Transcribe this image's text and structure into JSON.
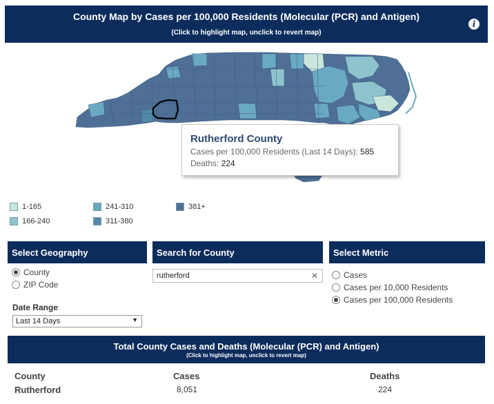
{
  "header": {
    "title": "County Map by Cases per 100,000 Residents (Molecular (PCR) and Antigen)",
    "subtitle": "(Click to highlight map, unclick to revert map)",
    "info_icon": "i"
  },
  "colors": {
    "header_bg": "#0c2c5c",
    "bin1": "#c8e6dc",
    "bin2": "#8fc3ce",
    "bin3": "#6aa9c2",
    "bin4": "#5089a8",
    "bin5": "#4f6f96"
  },
  "tooltip": {
    "county": "Rutherford County",
    "cases_label": "Cases per 100,000 Residents (Last 14 Days):",
    "cases_value": "585",
    "deaths_label": "Deaths:",
    "deaths_value": "224"
  },
  "legend": [
    {
      "label": "1-165",
      "color": "#c8e6dc"
    },
    {
      "label": "166-240",
      "color": "#8fc3ce"
    },
    {
      "label": "241-310",
      "color": "#6aa9c2"
    },
    {
      "label": "311-380",
      "color": "#5089a8"
    },
    {
      "label": "381+",
      "color": "#4f6f96"
    }
  ],
  "geography": {
    "heading": "Select Geography",
    "options": [
      {
        "label": "County",
        "checked": true
      },
      {
        "label": "ZIP Code",
        "checked": false
      }
    ],
    "date_range_label": "Date Range",
    "date_range_value": "Last 14 Days"
  },
  "search": {
    "heading": "Search for County",
    "value": "rutherford"
  },
  "metric": {
    "heading": "Select Metric",
    "options": [
      {
        "label": "Cases",
        "checked": false
      },
      {
        "label": "Cases per 10,000 Residents",
        "checked": false
      },
      {
        "label": "Cases per 100,000 Residents",
        "checked": true
      }
    ]
  },
  "table": {
    "title": "Total County Cases and Deaths (Molecular (PCR) and Antigen)",
    "subtitle": "(Click to highlight map, unclick to revert map)",
    "headers": [
      "County",
      "Cases",
      "Deaths"
    ],
    "rows": [
      {
        "county": "Rutherford",
        "cases": "8,051",
        "deaths": "224"
      }
    ]
  }
}
